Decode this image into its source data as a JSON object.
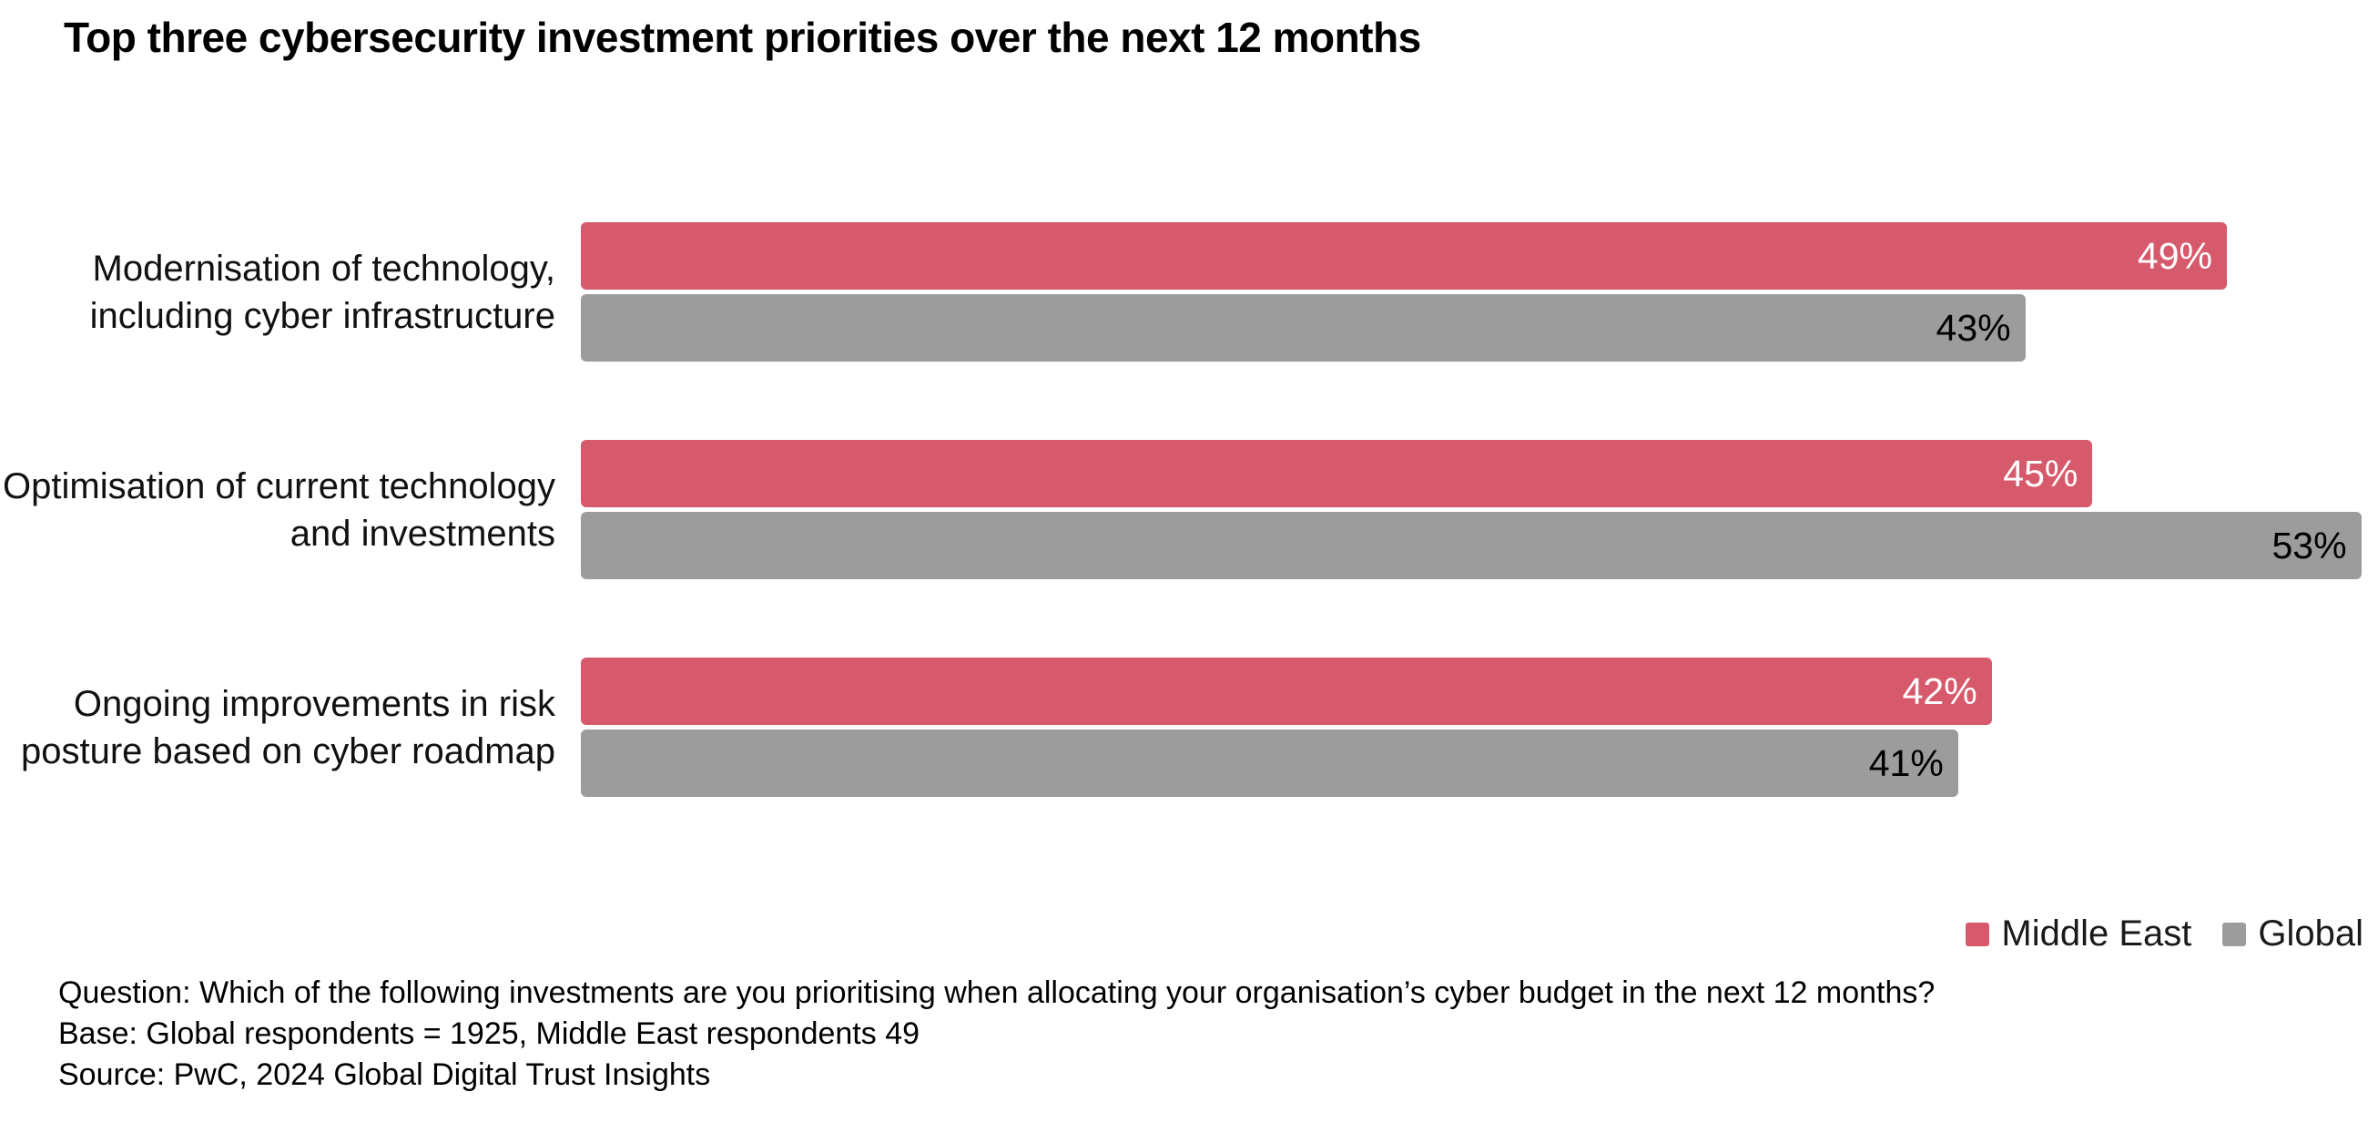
{
  "title": "Top three cybersecurity investment priorities over the next 12 months",
  "chart_data": {
    "type": "bar",
    "orientation": "horizontal",
    "title": "Top three cybersecurity investment priorities over the next 12 months",
    "categories": [
      "Modernisation of technology, including cyber infrastructure",
      "Optimisation of current technology and investments",
      "Ongoing improvements in risk posture based on cyber roadmap"
    ],
    "series": [
      {
        "name": "Middle East",
        "color": "#D75A6C",
        "label_color": "#FFFFFF",
        "values": [
          49,
          45,
          42
        ]
      },
      {
        "name": "Global",
        "color": "#9C9C9C",
        "label_color": "#000000",
        "values": [
          43,
          53,
          41
        ]
      }
    ],
    "value_suffix": "%",
    "xlim": [
      0,
      53.5
    ],
    "grid": false,
    "data_labels": "inside-end",
    "legend_position": "bottom-right"
  },
  "footnotes": {
    "question": "Question: Which of the following investments are you prioritising when allocating your organisation’s cyber budget in the next 12 months?",
    "base": "Base: Global respondents = 1925, Middle East respondents 49",
    "source": "Source: PwC, 2024 Global Digital Trust Insights"
  }
}
